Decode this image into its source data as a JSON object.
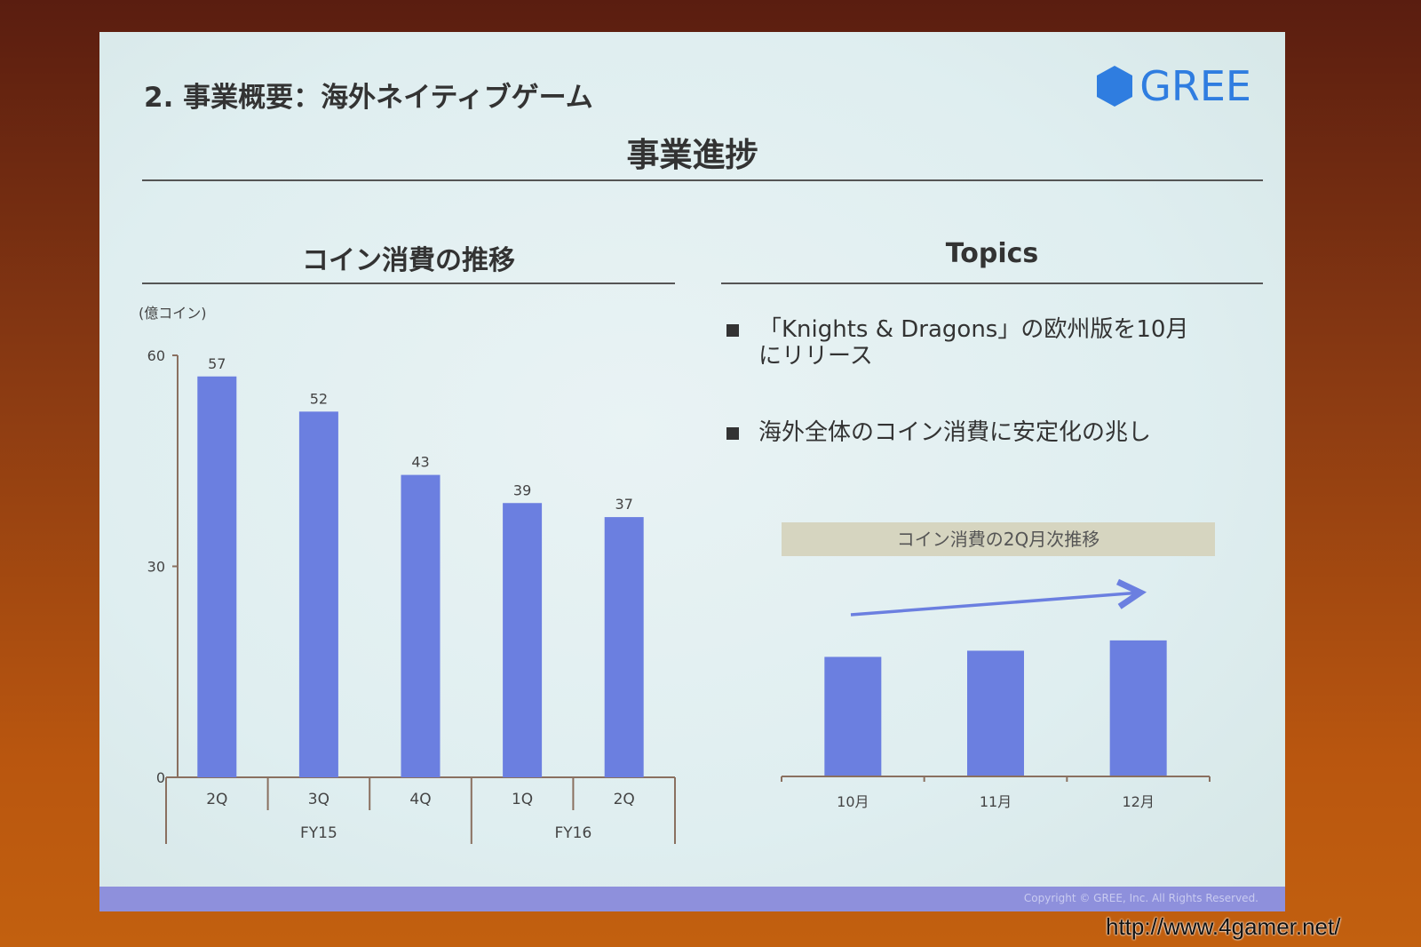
{
  "slide": {
    "title": "2. 事業概要：海外ネイティブゲーム",
    "logo_text": "GREE",
    "subtitle": "事業進捗",
    "copyright": "Copyright © GREE, Inc. All Rights Reserved.",
    "colors": {
      "bar": "#6b7fe0",
      "logo": "#2f7de0",
      "mini_title_bg": "#d6d5c0"
    }
  },
  "topics": {
    "heading": "Topics",
    "items": [
      {
        "line1": "「Knights & Dragons」の欧州版を10月",
        "line2": "にリリース"
      },
      {
        "line1": "海外全体のコイン消費に安定化の兆し",
        "line2": ""
      }
    ]
  },
  "watermark": "http://www.4gamer.net/",
  "chart_data": [
    {
      "type": "bar",
      "title": "コイン消費の推移",
      "ylabel": "(億コイン)",
      "categories": [
        "2Q",
        "3Q",
        "4Q",
        "1Q",
        "2Q"
      ],
      "groups": [
        {
          "label": "FY15",
          "span": 3
        },
        {
          "label": "FY16",
          "span": 2
        }
      ],
      "values": [
        57,
        52,
        43,
        39,
        37
      ],
      "data_labels": [
        "57",
        "52",
        "43",
        "39",
        "37"
      ],
      "yticks": [
        "0",
        "30",
        "60"
      ],
      "ylim": [
        0,
        60
      ],
      "grid": false
    },
    {
      "type": "bar",
      "title": "コイン消費の2Q月次推移",
      "categories": [
        "10月",
        "11月",
        "12月"
      ],
      "values": [
        11.6,
        12.2,
        13.2
      ],
      "trend_arrow": "up",
      "grid": false
    }
  ]
}
